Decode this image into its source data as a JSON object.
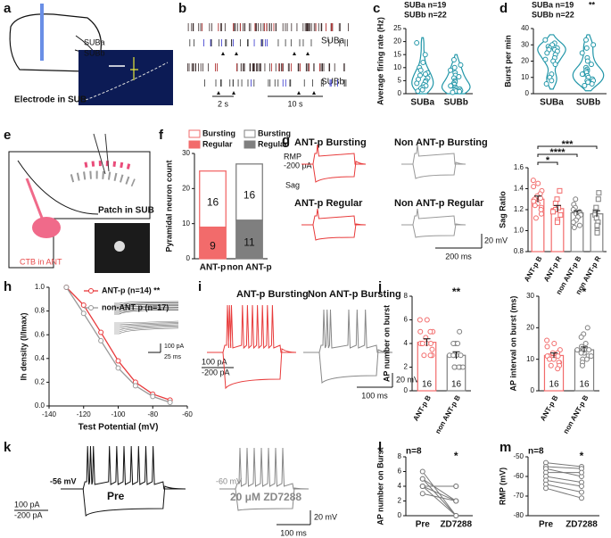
{
  "panel_labels": [
    "a",
    "b",
    "c",
    "d",
    "e",
    "f",
    "g",
    "h",
    "i",
    "j",
    "k",
    "l",
    "m"
  ],
  "panels": {
    "a": {
      "labels": [
        "SUBa",
        "SUBb"
      ],
      "caption": "Electrode in SUB"
    },
    "b": {
      "labels": [
        "SUBa",
        "SUBb"
      ],
      "scales": [
        "2 s",
        "10 s"
      ]
    },
    "e": {
      "labels": [
        "Patch in SUB",
        "CTB in ANT"
      ]
    },
    "g": {
      "titles": [
        "ANT-p Bursting",
        "Non ANT-p Bursting",
        "ANT-p Regular",
        "Non ANT-p Regular"
      ],
      "labels": [
        "RMP",
        "-200 pA",
        "Sag"
      ],
      "scales": [
        "20 mV",
        "200 ms"
      ]
    },
    "h": {
      "scales": [
        "100 pA",
        "25 ms"
      ]
    },
    "i": {
      "titles": [
        "ANT-p Bursting",
        "Non ANT-p Bursting"
      ],
      "labels": [
        "100 pA",
        "-200 pA"
      ],
      "scales": [
        "20 mV",
        "100 ms"
      ]
    },
    "k": {
      "labels": [
        "-56 mV",
        "Pre",
        "100 pA",
        "-200 pA",
        "-60 mV",
        "20 μM ZD7288"
      ],
      "scales": [
        "20 mV",
        "100 ms"
      ]
    }
  },
  "chart_data": [
    {
      "type": "violin",
      "ylabel": "Average firing rate (Hz)",
      "categories": [
        "SUBa",
        "SUBb"
      ],
      "color": "#2196a8",
      "points": [
        [
          19.5,
          15,
          12,
          10,
          9,
          8,
          7.5,
          7,
          6,
          5.5,
          5,
          4.5,
          4,
          3.5,
          3,
          2.5,
          2,
          1.5,
          1
        ],
        [
          13,
          11,
          10,
          9,
          8,
          7,
          6.5,
          6,
          5,
          4.5,
          4,
          3.5,
          3,
          3,
          2.5,
          2,
          1.8,
          1.5,
          1.2,
          1,
          0.8,
          0.5
        ]
      ],
      "ylim": [
        0,
        25
      ],
      "yticks": [
        0,
        5,
        10,
        15,
        20,
        25
      ],
      "annotations": [
        "SUBa n=19",
        "SUBb n=22"
      ]
    },
    {
      "type": "violin",
      "ylabel": "Burst per min",
      "categories": [
        "SUBa",
        "SUBb"
      ],
      "color": "#2196a8",
      "points": [
        [
          33,
          31,
          30,
          29,
          28,
          28,
          27,
          27,
          26,
          25,
          24,
          22,
          21,
          20,
          18,
          12,
          10,
          8,
          6
        ],
        [
          33,
          30,
          28,
          25,
          22,
          20,
          18,
          16,
          15,
          14,
          14,
          13,
          12,
          12,
          11,
          10,
          9,
          8,
          8,
          7,
          6,
          5
        ]
      ],
      "ylim": [
        0,
        40
      ],
      "yticks": [
        0,
        10,
        20,
        30,
        40
      ],
      "annotations": [
        "SUBa n=19",
        "SUBb n=22",
        "**"
      ]
    },
    {
      "type": "stacked_bar",
      "ylabel": "Pyramidal neuron count",
      "categories": [
        "ANT-p",
        "non ANT-p"
      ],
      "series": [
        {
          "name": "Regular",
          "values": [
            9,
            11
          ]
        },
        {
          "name": "Bursting",
          "values": [
            16,
            16
          ]
        }
      ],
      "colors": [
        "#f26b6b",
        "#7f7f7f"
      ],
      "ylim": [
        0,
        30
      ],
      "yticks": [
        0,
        10,
        20,
        30
      ]
    },
    {
      "type": "bar_scatter",
      "ylabel": "Sag Ratio",
      "categories": [
        "ANT-p B",
        "ANT-p R",
        "non ANT-p B",
        "non ANT-p R"
      ],
      "values": [
        1.3,
        1.21,
        1.17,
        1.16
      ],
      "errors": [
        0.03,
        0.03,
        0.02,
        0.03
      ],
      "points": [
        [
          1.48,
          1.45,
          1.42,
          1.38,
          1.35,
          1.33,
          1.31,
          1.3,
          1.28,
          1.26,
          1.24,
          1.22,
          1.2,
          1.16,
          1.12
        ],
        [
          1.38,
          1.3,
          1.26,
          1.22,
          1.2,
          1.18,
          1.15,
          1.1,
          1.08
        ],
        [
          1.3,
          1.25,
          1.22,
          1.2,
          1.18,
          1.17,
          1.16,
          1.15,
          1.13,
          1.1,
          1.08,
          1.05,
          1.03
        ],
        [
          1.36,
          1.3,
          1.22,
          1.18,
          1.15,
          1.12,
          1.08,
          1.05,
          1.0,
          0.98
        ]
      ],
      "colors": [
        "#f26b6b",
        "#f26b6b",
        "#7f7f7f",
        "#7f7f7f"
      ],
      "markers": [
        "circle",
        "square",
        "circle",
        "square"
      ],
      "ylim": [
        0.8,
        1.6
      ],
      "yticks": [
        0.8,
        {
          "value": 1.0,
          "label": "1.0"
        },
        1.2,
        1.4,
        1.6
      ],
      "significance": [
        "*",
        "****",
        "***"
      ]
    },
    {
      "type": "line",
      "xlabel": "Test Potential (mV)",
      "ylabel": "Ih density (I/Imax)",
      "x": [
        -130,
        -120,
        -110,
        -100,
        -90,
        -80,
        -70
      ],
      "series": [
        {
          "name": "ANT-p (n=14) **",
          "color": "#e8393b",
          "values": [
            1.0,
            0.85,
            0.62,
            0.38,
            0.2,
            0.1,
            0.05
          ]
        },
        {
          "name": "non-ANT p (n=17)",
          "color": "#999999",
          "values": [
            1.0,
            0.78,
            0.55,
            0.32,
            0.17,
            0.08,
            0.03
          ]
        }
      ],
      "xlim": [
        -140,
        -60
      ],
      "xticks": [
        -140,
        -120,
        -100,
        -80,
        -60
      ],
      "ylim": [
        0,
        1.0
      ],
      "yticks": [
        {
          "value": 0,
          "label": "0.0"
        },
        0.2,
        0.4,
        0.6,
        0.8,
        {
          "value": 1.0,
          "label": "1.0"
        }
      ]
    },
    {
      "type": "bar_scatter",
      "ylabel": "AP number  on burst",
      "categories": [
        "ANT-p B",
        "non ANT-p B"
      ],
      "values": [
        4.1,
        3.0
      ],
      "errors": [
        0.3,
        0.3
      ],
      "n": [
        16,
        16
      ],
      "points": [
        [
          6,
          6,
          5,
          5,
          5,
          4.5,
          4,
          4,
          4,
          4,
          4,
          3.5,
          3,
          3,
          3,
          3
        ],
        [
          5,
          4,
          4,
          4,
          3,
          3,
          3,
          3,
          3,
          3,
          2,
          2,
          2,
          2,
          2,
          2
        ]
      ],
      "colors": [
        "#f26b6b",
        "#7f7f7f"
      ],
      "markers": [
        "circle",
        "circle"
      ],
      "ylim": [
        0,
        8
      ],
      "yticks": [
        0,
        2,
        4,
        6,
        8
      ],
      "significance": [
        "**"
      ]
    },
    {
      "type": "bar_scatter",
      "ylabel": "AP interval on burst (ms)",
      "categories": [
        "ANT-p B",
        "non ANT-p B"
      ],
      "values": [
        11.2,
        13.0
      ],
      "errors": [
        0.8,
        0.9
      ],
      "n": [
        16,
        16
      ],
      "points": [
        [
          16,
          15,
          14,
          13,
          12,
          12,
          11,
          11,
          11,
          10,
          10,
          9,
          9,
          8,
          8,
          7
        ],
        [
          20,
          18,
          17,
          15,
          14,
          13,
          13,
          13,
          12,
          12,
          11,
          11,
          10,
          10,
          9,
          8
        ]
      ],
      "colors": [
        "#f26b6b",
        "#7f7f7f"
      ],
      "markers": [
        "circle",
        "circle"
      ],
      "ylim": [
        0,
        30
      ],
      "yticks": [
        0,
        10,
        20,
        30
      ],
      "significance": [
        "*"
      ]
    },
    {
      "type": "paired",
      "ylabel": "AP number on Burst",
      "categories": [
        "Pre",
        "ZD7288"
      ],
      "points": [
        [
          6,
          5,
          5,
          4,
          4,
          4,
          4,
          3
        ],
        [
          0,
          2,
          0,
          4,
          4,
          2,
          0,
          2
        ]
      ],
      "ylim": [
        0,
        8
      ],
      "yticks": [
        0,
        2,
        4,
        6,
        8
      ],
      "annotations": [
        "n=8",
        "*"
      ]
    },
    {
      "type": "paired",
      "ylabel": "RMP (mV)",
      "categories": [
        "Pre",
        "ZD7288"
      ],
      "points": [
        [
          -53,
          -55,
          -56,
          -58,
          -60,
          -62,
          -64,
          -66
        ],
        [
          -55,
          -56,
          -60,
          -58,
          -63,
          -65,
          -68,
          -71
        ]
      ],
      "ylim": [
        -80,
        -50
      ],
      "yticks": [
        -50,
        -60,
        -70,
        -80
      ],
      "annotations": [
        "n=8",
        "*"
      ]
    }
  ]
}
